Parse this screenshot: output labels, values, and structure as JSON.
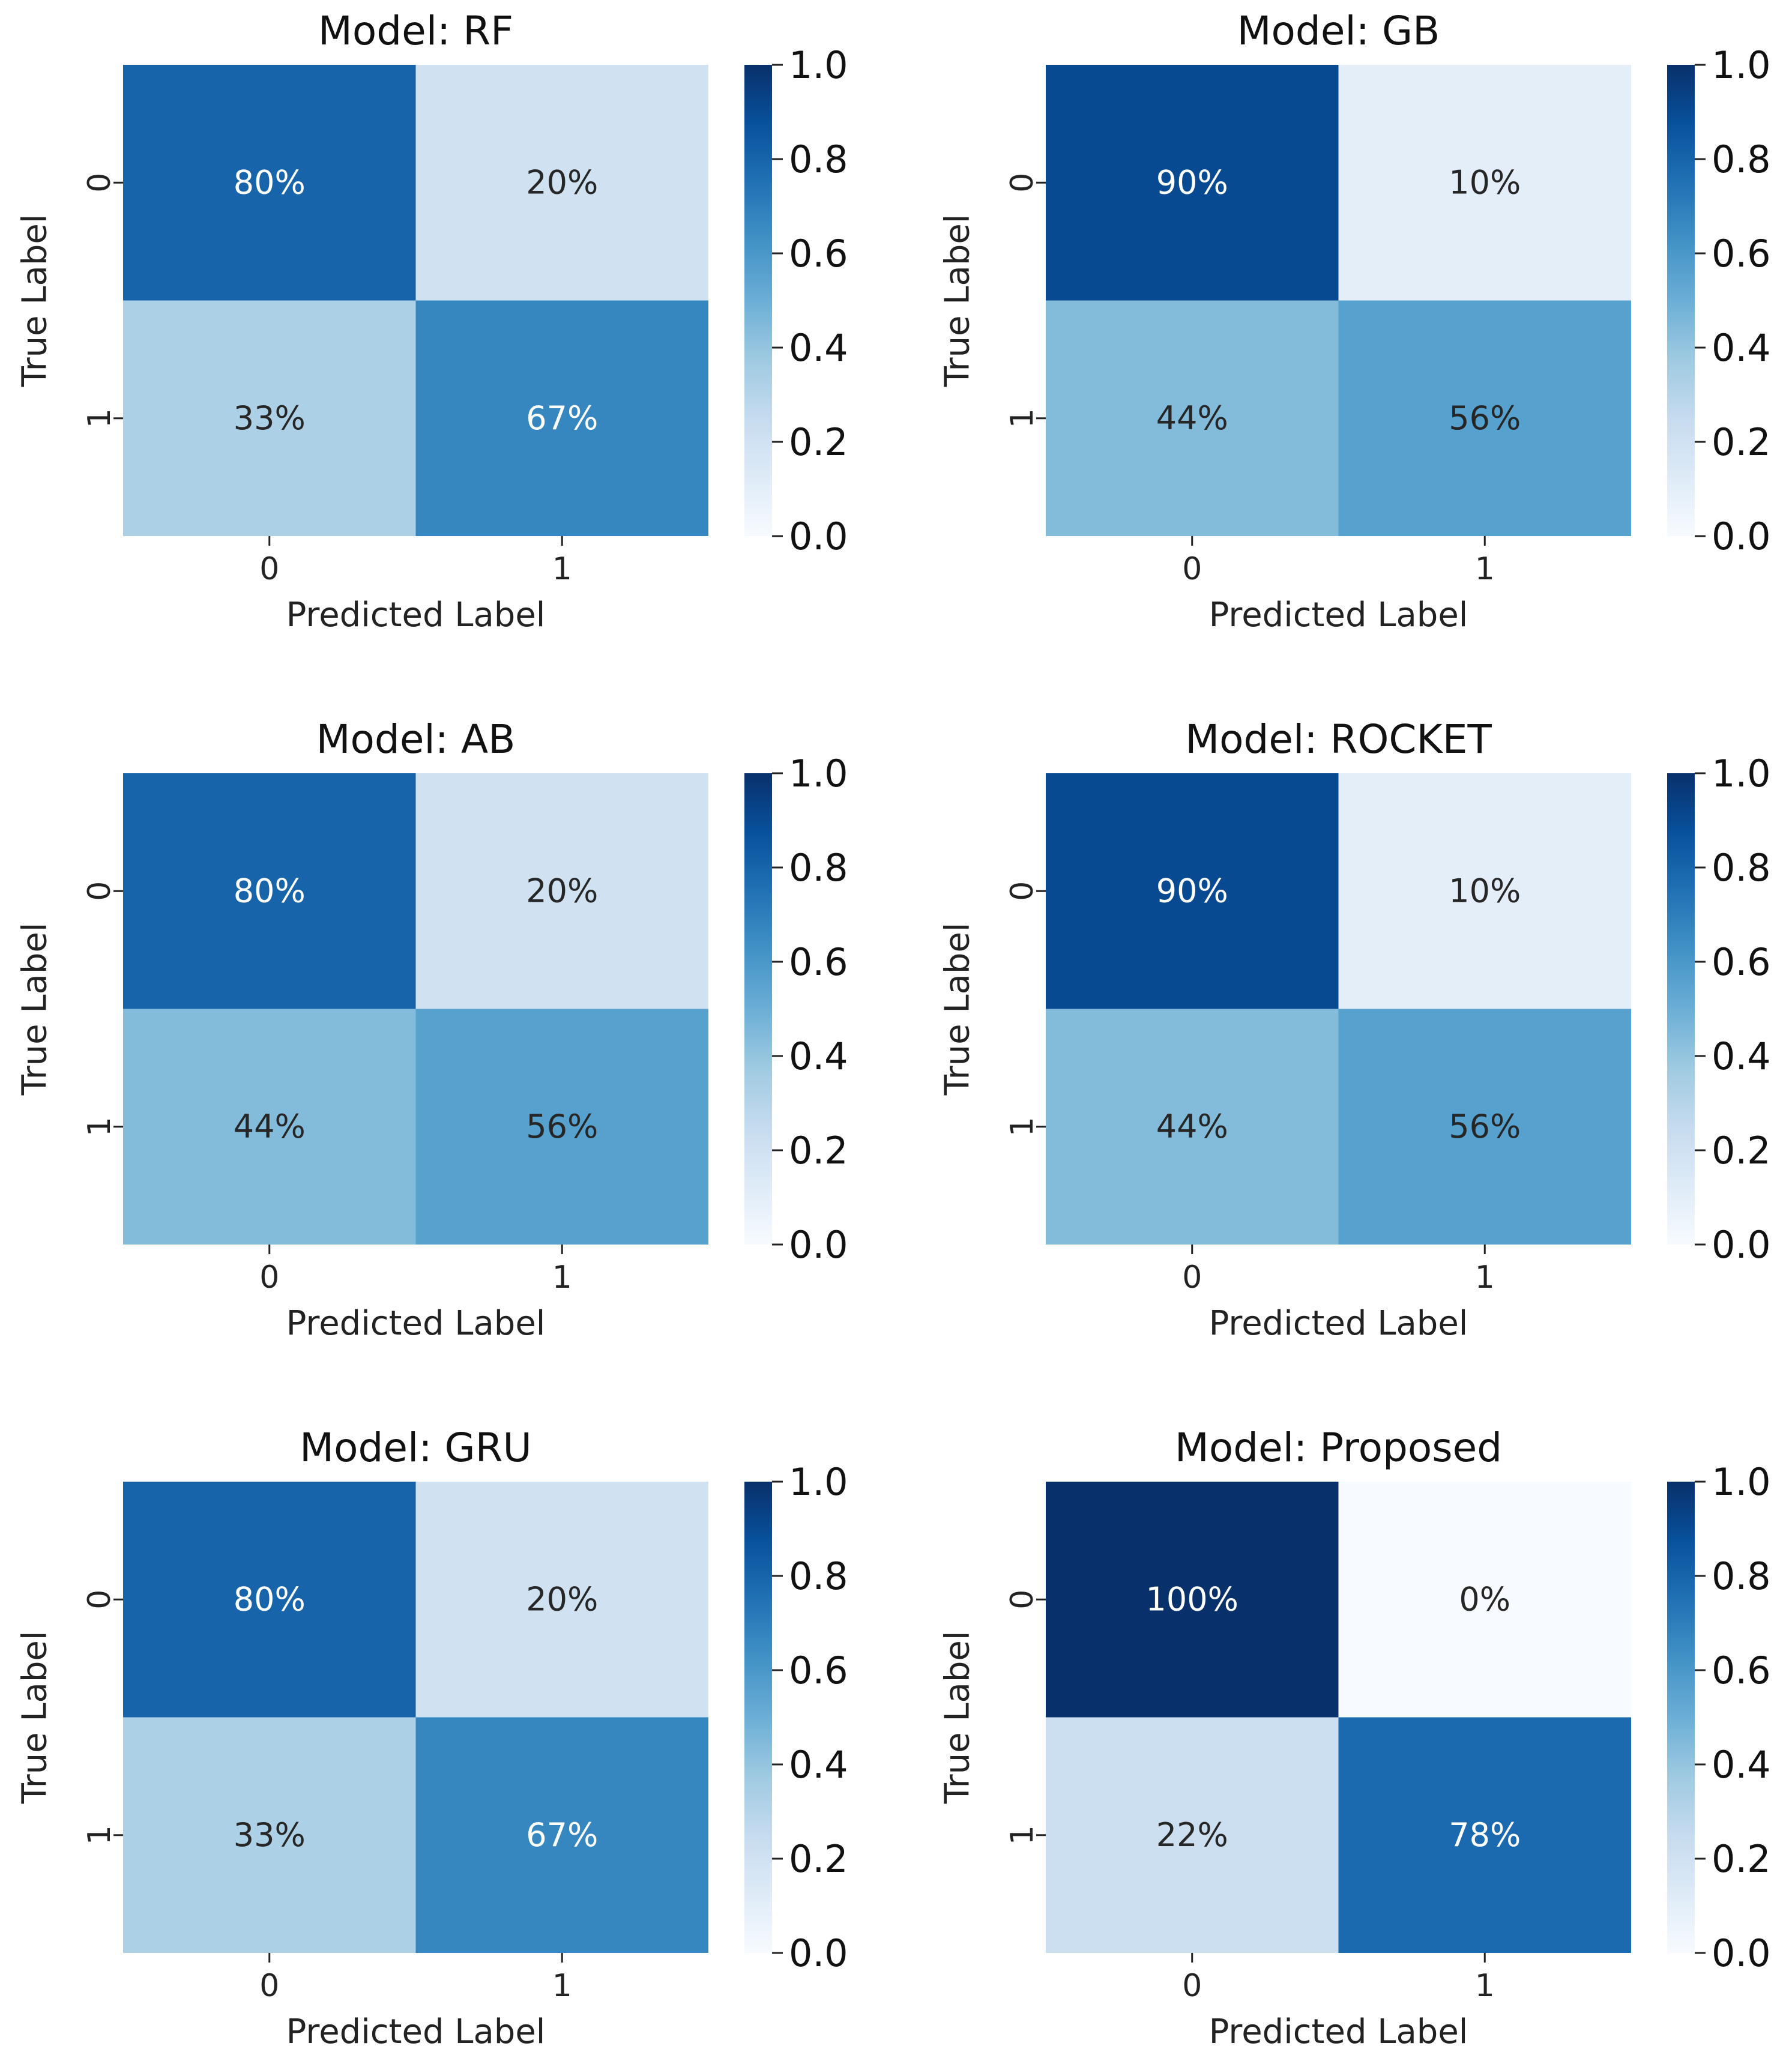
{
  "figure": {
    "layout": "3x2 grid of confusion-matrix heatmaps"
  },
  "chart_data": [
    {
      "type": "heatmap",
      "title": "Model: RF",
      "xlabel": "Predicted Label",
      "ylabel": "True Label",
      "x_categories": [
        "0",
        "1"
      ],
      "y_categories": [
        "0",
        "1"
      ],
      "values": [
        [
          0.8,
          0.2
        ],
        [
          0.33,
          0.67
        ]
      ],
      "cell_labels": [
        [
          "80%",
          "20%"
        ],
        [
          "33%",
          "67%"
        ]
      ],
      "colorbar": {
        "range": [
          0.0,
          1.0
        ],
        "ticks": [
          "0.0",
          "0.2",
          "0.4",
          "0.6",
          "0.8",
          "1.0"
        ]
      }
    },
    {
      "type": "heatmap",
      "title": "Model: GB",
      "xlabel": "Predicted Label",
      "ylabel": "True Label",
      "x_categories": [
        "0",
        "1"
      ],
      "y_categories": [
        "0",
        "1"
      ],
      "values": [
        [
          0.9,
          0.1
        ],
        [
          0.44,
          0.56
        ]
      ],
      "cell_labels": [
        [
          "90%",
          "10%"
        ],
        [
          "44%",
          "56%"
        ]
      ],
      "colorbar": {
        "range": [
          0.0,
          1.0
        ],
        "ticks": [
          "0.0",
          "0.2",
          "0.4",
          "0.6",
          "0.8",
          "1.0"
        ]
      }
    },
    {
      "type": "heatmap",
      "title": "Model: AB",
      "xlabel": "Predicted Label",
      "ylabel": "True Label",
      "x_categories": [
        "0",
        "1"
      ],
      "y_categories": [
        "0",
        "1"
      ],
      "values": [
        [
          0.8,
          0.2
        ],
        [
          0.44,
          0.56
        ]
      ],
      "cell_labels": [
        [
          "80%",
          "20%"
        ],
        [
          "44%",
          "56%"
        ]
      ],
      "colorbar": {
        "range": [
          0.0,
          1.0
        ],
        "ticks": [
          "0.0",
          "0.2",
          "0.4",
          "0.6",
          "0.8",
          "1.0"
        ]
      }
    },
    {
      "type": "heatmap",
      "title": "Model: ROCKET",
      "xlabel": "Predicted Label",
      "ylabel": "True Label",
      "x_categories": [
        "0",
        "1"
      ],
      "y_categories": [
        "0",
        "1"
      ],
      "values": [
        [
          0.9,
          0.1
        ],
        [
          0.44,
          0.56
        ]
      ],
      "cell_labels": [
        [
          "90%",
          "10%"
        ],
        [
          "44%",
          "56%"
        ]
      ],
      "colorbar": {
        "range": [
          0.0,
          1.0
        ],
        "ticks": [
          "0.0",
          "0.2",
          "0.4",
          "0.6",
          "0.8",
          "1.0"
        ]
      }
    },
    {
      "type": "heatmap",
      "title": "Model: GRU",
      "xlabel": "Predicted Label",
      "ylabel": "True Label",
      "x_categories": [
        "0",
        "1"
      ],
      "y_categories": [
        "0",
        "1"
      ],
      "values": [
        [
          0.8,
          0.2
        ],
        [
          0.33,
          0.67
        ]
      ],
      "cell_labels": [
        [
          "80%",
          "20%"
        ],
        [
          "33%",
          "67%"
        ]
      ],
      "colorbar": {
        "range": [
          0.0,
          1.0
        ],
        "ticks": [
          "0.0",
          "0.2",
          "0.4",
          "0.6",
          "0.8",
          "1.0"
        ]
      }
    },
    {
      "type": "heatmap",
      "title": "Model: Proposed",
      "xlabel": "Predicted Label",
      "ylabel": "True Label",
      "x_categories": [
        "0",
        "1"
      ],
      "y_categories": [
        "0",
        "1"
      ],
      "values": [
        [
          1.0,
          0.0
        ],
        [
          0.22,
          0.78
        ]
      ],
      "cell_labels": [
        [
          "100%",
          "0%"
        ],
        [
          "22%",
          "78%"
        ]
      ],
      "colorbar": {
        "range": [
          0.0,
          1.0
        ],
        "ticks": [
          "0.0",
          "0.2",
          "0.4",
          "0.6",
          "0.8",
          "1.0"
        ]
      }
    }
  ],
  "colormap": {
    "name": "Blues",
    "stops": [
      "#f7fbff",
      "#deebf7",
      "#c6dbef",
      "#9ecae1",
      "#6baed6",
      "#4292c6",
      "#2171b5",
      "#08519c",
      "#08306b"
    ]
  }
}
